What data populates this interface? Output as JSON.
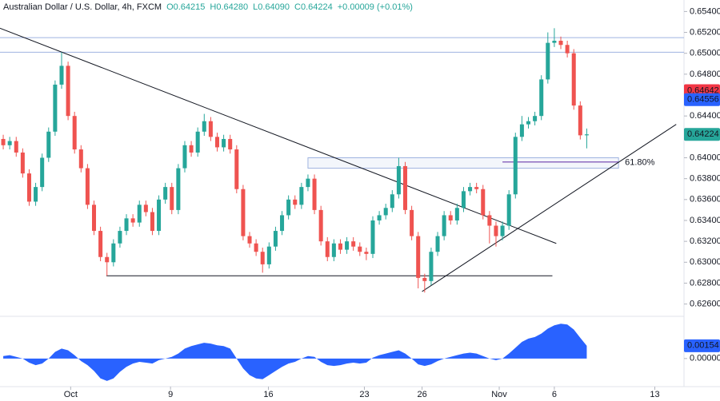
{
  "chart_data": {
    "type": "candlestick",
    "title": "Australian Dollar / U.S. Dollar, 4h, FXCM",
    "header_values": [
      "O0.64215",
      "H0.64280",
      "L0.64090",
      "C0.64224",
      "+0.00009 (+0.01%)"
    ],
    "up_color": "#26a69a",
    "down_color": "#ef5350",
    "open": [
      0.6418,
      0.6412,
      0.6416,
      0.6405,
      0.6385,
      0.6358,
      0.6372,
      0.64,
      0.6425,
      0.647,
      0.6488,
      0.644,
      0.6408,
      0.639,
      0.6355,
      0.633,
      0.6305,
      0.63,
      0.6318,
      0.633,
      0.6342,
      0.6338,
      0.6355,
      0.6348,
      0.633,
      0.636,
      0.6372,
      0.635,
      0.639,
      0.6412,
      0.6405,
      0.6425,
      0.6435,
      0.642,
      0.641,
      0.6418,
      0.6408,
      0.637,
      0.6325,
      0.6318,
      0.631,
      0.6298,
      0.6315,
      0.633,
      0.6345,
      0.636,
      0.6355,
      0.6372,
      0.638,
      0.635,
      0.632,
      0.6305,
      0.6318,
      0.6312,
      0.632,
      0.6315,
      0.631,
      0.6308,
      0.634,
      0.6345,
      0.6352,
      0.6365,
      0.6392,
      0.635,
      0.6325,
      0.6285,
      0.6282,
      0.631,
      0.6325,
      0.6345,
      0.634,
      0.6352,
      0.6368,
      0.6372,
      0.637,
      0.6345,
      0.6335,
      0.6325,
      0.6335,
      0.6365,
      0.642,
      0.6432,
      0.6435,
      0.644,
      0.6475,
      0.651,
      0.6512,
      0.6508,
      0.65,
      0.645,
      0.64215
    ],
    "high": [
      0.6422,
      0.642,
      0.642,
      0.6409,
      0.6389,
      0.6376,
      0.6404,
      0.6429,
      0.6474,
      0.6501,
      0.6492,
      0.6444,
      0.6412,
      0.6394,
      0.6359,
      0.6334,
      0.6309,
      0.6322,
      0.6334,
      0.6346,
      0.6346,
      0.6359,
      0.6359,
      0.6352,
      0.6364,
      0.6376,
      0.6376,
      0.6394,
      0.6416,
      0.6416,
      0.6429,
      0.6442,
      0.6439,
      0.6424,
      0.6422,
      0.6422,
      0.6412,
      0.6374,
      0.6329,
      0.6322,
      0.6314,
      0.6319,
      0.6334,
      0.6349,
      0.6364,
      0.6364,
      0.6376,
      0.6384,
      0.6384,
      0.6354,
      0.6324,
      0.6322,
      0.6322,
      0.6324,
      0.6324,
      0.6319,
      0.6314,
      0.6344,
      0.6349,
      0.6356,
      0.6369,
      0.64,
      0.6396,
      0.6354,
      0.6329,
      0.6289,
      0.6314,
      0.6329,
      0.6349,
      0.6349,
      0.6356,
      0.6372,
      0.6376,
      0.6376,
      0.6374,
      0.6349,
      0.6339,
      0.6339,
      0.6369,
      0.6424,
      0.644,
      0.6439,
      0.6444,
      0.6479,
      0.652,
      0.6524,
      0.6516,
      0.6512,
      0.6504,
      0.6454,
      0.6428
    ],
    "low": [
      0.6408,
      0.6408,
      0.6401,
      0.6381,
      0.6354,
      0.6354,
      0.6368,
      0.6396,
      0.6421,
      0.6466,
      0.6436,
      0.6404,
      0.6386,
      0.6351,
      0.6326,
      0.6301,
      0.6287,
      0.6296,
      0.6314,
      0.6326,
      0.6334,
      0.6334,
      0.6344,
      0.6326,
      0.6326,
      0.6356,
      0.6346,
      0.6346,
      0.6386,
      0.6401,
      0.6401,
      0.6421,
      0.6416,
      0.6406,
      0.6406,
      0.6404,
      0.6366,
      0.6321,
      0.6314,
      0.6306,
      0.629,
      0.6294,
      0.6311,
      0.6326,
      0.6341,
      0.6351,
      0.6351,
      0.6368,
      0.6346,
      0.6316,
      0.6301,
      0.6301,
      0.6308,
      0.6308,
      0.6311,
      0.6306,
      0.6302,
      0.6304,
      0.6336,
      0.6341,
      0.6348,
      0.6361,
      0.6346,
      0.6321,
      0.6275,
      0.6271,
      0.6278,
      0.6306,
      0.6321,
      0.6336,
      0.6336,
      0.6348,
      0.6364,
      0.6366,
      0.6341,
      0.6318,
      0.6315,
      0.6321,
      0.6331,
      0.6361,
      0.6416,
      0.6428,
      0.6431,
      0.6436,
      0.6471,
      0.6506,
      0.6504,
      0.6496,
      0.6446,
      0.64175,
      0.6409
    ],
    "close": [
      0.6412,
      0.6416,
      0.6405,
      0.6385,
      0.6358,
      0.6372,
      0.64,
      0.6425,
      0.647,
      0.6488,
      0.644,
      0.6408,
      0.639,
      0.6355,
      0.633,
      0.6305,
      0.63,
      0.6318,
      0.633,
      0.6342,
      0.6338,
      0.6355,
      0.6348,
      0.633,
      0.636,
      0.6372,
      0.635,
      0.639,
      0.6412,
      0.6405,
      0.6425,
      0.6435,
      0.642,
      0.641,
      0.6418,
      0.6408,
      0.637,
      0.6325,
      0.6318,
      0.631,
      0.6298,
      0.6315,
      0.633,
      0.6345,
      0.636,
      0.6355,
      0.6372,
      0.638,
      0.635,
      0.632,
      0.6305,
      0.6318,
      0.6312,
      0.632,
      0.6315,
      0.631,
      0.6308,
      0.634,
      0.6345,
      0.6352,
      0.6365,
      0.6392,
      0.635,
      0.6325,
      0.6285,
      0.6282,
      0.631,
      0.6325,
      0.6345,
      0.634,
      0.6352,
      0.6368,
      0.6372,
      0.637,
      0.6345,
      0.6335,
      0.6325,
      0.6335,
      0.6365,
      0.642,
      0.6432,
      0.6435,
      0.644,
      0.6475,
      0.651,
      0.6512,
      0.6508,
      0.65,
      0.645,
      0.64215,
      0.64224
    ],
    "xlim": [
      -0.5,
      105
    ],
    "xticks": [
      {
        "value": 10.4,
        "label": "Oct"
      },
      {
        "value": 25.8,
        "label": "9"
      },
      {
        "value": 40.9,
        "label": "16"
      },
      {
        "value": 55.7,
        "label": "23"
      },
      {
        "value": 64.6,
        "label": "26"
      },
      {
        "value": 76.5,
        "label": "Nov"
      },
      {
        "value": 85,
        "label": "6"
      },
      {
        "value": 100.5,
        "label": "13"
      }
    ],
    "ylim": [
      0.6249,
      0.6551
    ],
    "yticks": [
      {
        "value": 0.654,
        "label": "0.65400"
      },
      {
        "value": 0.652,
        "label": "0.65200"
      },
      {
        "value": 0.65,
        "label": "0.65000"
      },
      {
        "value": 0.648,
        "label": "0.64800"
      },
      {
        "value": 0.646,
        "label": "0.64600"
      },
      {
        "value": 0.644,
        "label": "0.64400"
      },
      {
        "value": 0.642,
        "label": "0.64200"
      },
      {
        "value": 0.64,
        "label": "0.64000"
      },
      {
        "value": 0.638,
        "label": "0.63800"
      },
      {
        "value": 0.636,
        "label": "0.63600"
      },
      {
        "value": 0.634,
        "label": "0.63400"
      },
      {
        "value": 0.632,
        "label": "0.63200"
      },
      {
        "value": 0.63,
        "label": "0.63000"
      },
      {
        "value": 0.628,
        "label": "0.62800"
      },
      {
        "value": 0.626,
        "label": "0.62600"
      }
    ],
    "price_tags": [
      {
        "value": 0.64642,
        "label": "0.64642",
        "color": "#f23645"
      },
      {
        "value": 0.64556,
        "label": "0.64556",
        "color": "#2962ff"
      },
      {
        "value": 0.64224,
        "label": "0.64224",
        "color": "#26a69a"
      }
    ],
    "levels": [
      {
        "value": 0.6515,
        "color": "#9fb3e0"
      },
      {
        "value": 0.6501,
        "color": "#9fb3e0"
      }
    ],
    "trendlines": [
      {
        "x": [
          -0.5,
          85.3
        ],
        "y": [
          0.6524,
          0.6318
        ]
      },
      {
        "x": [
          64.6,
          103.8
        ],
        "y": [
          0.6272,
          0.6432
        ]
      },
      {
        "x": [
          15.9,
          84.7
        ],
        "y": [
          0.6287,
          0.6287
        ]
      }
    ],
    "zone": {
      "x": [
        47,
        94.9
      ],
      "y": [
        0.639,
        0.64
      ],
      "color": "#9fb3e0"
    },
    "fib": {
      "label": "61.80%",
      "value": 0.6396,
      "x": [
        77,
        94.9
      ],
      "color": "#8e6bbf"
    },
    "oscillator": {
      "color": "#2962ff",
      "values": [
        0.0003,
        0.0004,
        0.0002,
        0.0,
        -0.0005,
        -0.0008,
        -0.0006,
        0.0,
        0.0008,
        0.0012,
        0.001,
        0.0004,
        -0.0003,
        -0.0008,
        -0.0015,
        -0.0024,
        -0.0027,
        -0.0024,
        -0.0016,
        -0.001,
        -0.0006,
        -0.0004,
        -0.0005,
        -0.0006,
        -0.0002,
        0.0,
        0.0002,
        0.0006,
        0.0012,
        0.0015,
        0.0017,
        0.0019,
        0.0018,
        0.0016,
        0.0015,
        0.0012,
        0.0,
        -0.0012,
        -0.002,
        -0.0024,
        -0.0025,
        -0.002,
        -0.0015,
        -0.001,
        -0.0006,
        -0.0004,
        0.0,
        0.0003,
        0.0002,
        -0.0004,
        -0.0008,
        -0.0009,
        -0.0008,
        -0.0006,
        -0.0005,
        -0.0006,
        -0.0005,
        0.0001,
        0.0004,
        0.0006,
        0.0008,
        0.001,
        0.0006,
        0.0,
        -0.0007,
        -0.0009,
        -0.0007,
        -0.0003,
        0.0,
        0.0002,
        0.0004,
        0.0006,
        0.0007,
        0.0006,
        0.0003,
        0.0,
        -0.0002,
        0.0,
        0.0006,
        0.0013,
        0.002,
        0.0024,
        0.0026,
        0.003,
        0.0036,
        0.004,
        0.0042,
        0.0041,
        0.0035,
        0.0025,
        0.00154
      ],
      "ylim": [
        -0.003,
        0.0047
      ],
      "yticks": [
        {
          "value": 0,
          "label": "0.00000"
        }
      ],
      "tag": {
        "value": 0.00154,
        "label": "0.00154"
      }
    }
  }
}
